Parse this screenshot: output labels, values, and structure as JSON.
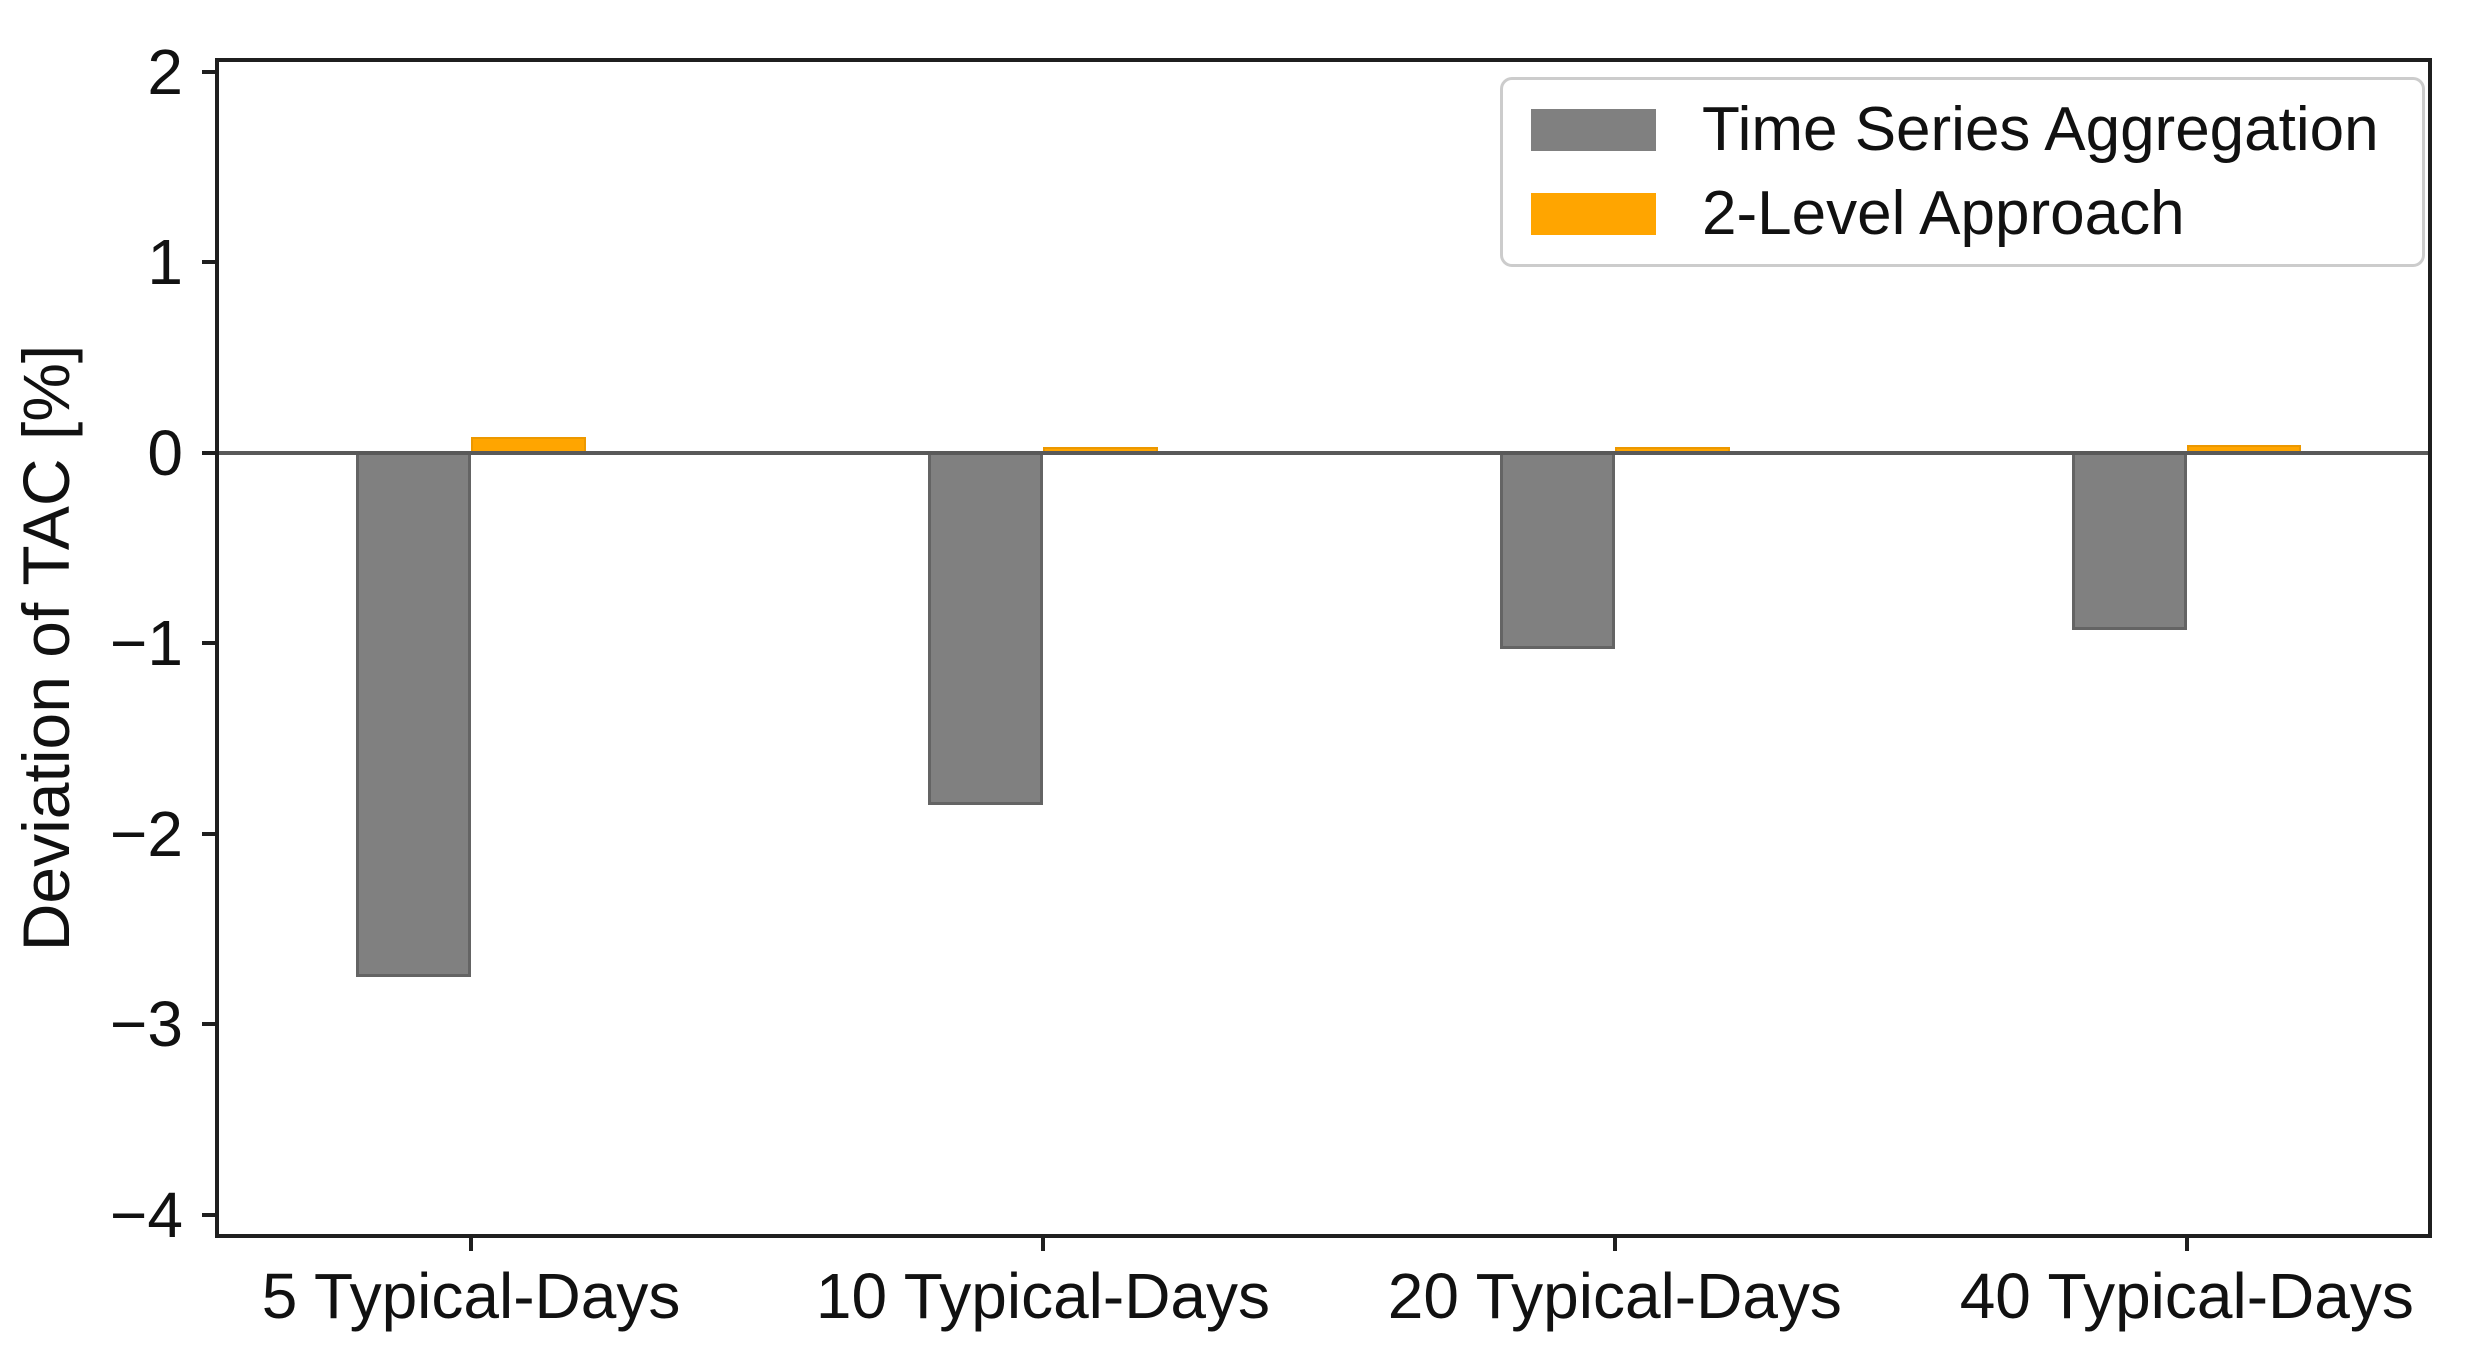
{
  "figure": {
    "background": "#ffffff",
    "frame_color": "#1f1f1f"
  },
  "chart_data": {
    "type": "bar",
    "title": "",
    "xlabel": "",
    "ylabel": "Deviation of TAC [%]",
    "categories": [
      "5 Typical-Days",
      "10 Typical-Days",
      "20 Typical-Days",
      "40 Typical-Days"
    ],
    "series": [
      {
        "name": "Time Series Aggregation",
        "color": "#808080",
        "values": [
          -2.75,
          -1.85,
          -1.03,
          -0.93
        ]
      },
      {
        "name": "2-Level Approach",
        "color": "#FFA500",
        "values": [
          0.08,
          0.03,
          0.03,
          0.04
        ]
      }
    ],
    "ylim": [
      -4.1,
      2.05
    ],
    "yticks": [
      2,
      1,
      0,
      -1,
      -2,
      -3,
      -4
    ],
    "ytick_labels": [
      "2",
      "1",
      "0",
      "−1",
      "−2",
      "−3",
      "−4"
    ],
    "group_centers_pct": [
      11.41,
      37.3,
      63.19,
      89.08
    ],
    "bar_width_pct": 5.19,
    "grid": false,
    "zero_line": true,
    "zero_line_color": "#595959",
    "legend_position": "upper right",
    "legend_border_color": "#cccccc"
  }
}
